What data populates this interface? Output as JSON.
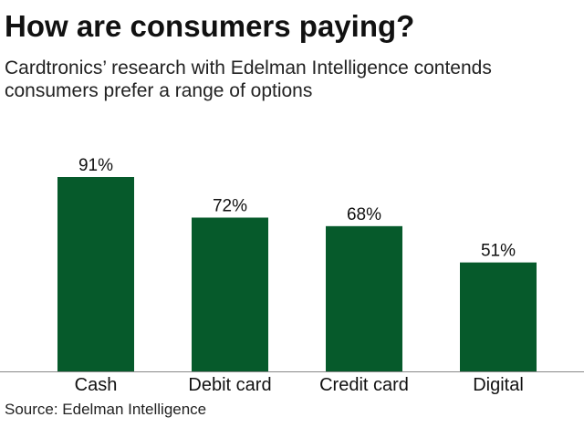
{
  "title": "How are consumers paying?",
  "subtitle": [
    "Cardtronics’ research with Edelman Intelligence contends",
    "consumers prefer a range of options"
  ],
  "source": "Source: Edelman Intelligence",
  "colors": {
    "bar": "#065a2b",
    "axis": "#888888",
    "text": "#111111"
  },
  "chart_data": {
    "type": "bar",
    "title": "How are consumers paying?",
    "categories": [
      "Cash",
      "Debit card",
      "Credit card",
      "Digital"
    ],
    "values": [
      91,
      72,
      68,
      51
    ],
    "data_labels": [
      "91%",
      "72%",
      "68%",
      "51%"
    ],
    "unit": "%",
    "xlabel": "",
    "ylabel": "",
    "ylim": [
      0,
      100
    ],
    "grid": false,
    "legend": "none"
  }
}
